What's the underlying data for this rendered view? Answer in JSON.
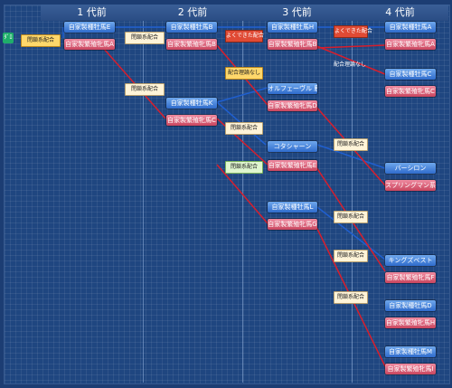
{
  "headers": [
    "1 代前",
    "2 代前",
    "3 代前",
    "4 代前"
  ],
  "root_label": "ﾀﾞﾛ",
  "gen1": {
    "tag": "閉鎖系配合",
    "sire": "自家製種牡馬E",
    "dam": "自家製繁殖牝馬A"
  },
  "gen2": {
    "tag_top": "閉鎖系配合",
    "tag_mid": "閉鎖系配合",
    "sire_a": "自家製種牡馬B",
    "dam_a": "自家製繁殖牝馬B",
    "sire_b": "自家製種牡馬K",
    "dam_b": "自家製繁殖牝馬C"
  },
  "gen3": {
    "tag_1": "よくできた配合",
    "tag_2": "配合理論なし",
    "tag_3": "閉鎖系配合",
    "tag_4": "閉鎖系配合",
    "sire_1": "自家製種牡馬H",
    "dam_1": "自家製繁殖牝馬B",
    "sire_2": "オルフェーヴル 鹿毛",
    "dam_2": "自家製繁殖牝馬D",
    "sire_3": "コタシャーン",
    "dam_3": "自家製繁殖牝馬E",
    "sire_4": "自家製種牡馬L",
    "dam_4": "自家製繁殖牝馬G",
    "tag_r1": "よくできた配合",
    "tag_r2": "配合理論なし",
    "tag_r3": "閉鎖系配合",
    "tag_r4": "閉鎖系配合",
    "tag_r5": "閉鎖系配合",
    "tag_r6": "閉鎖系配合"
  },
  "gen4": {
    "s1": "自家製種牡馬A",
    "d1": "自家製繁殖牝馬A",
    "s2": "自家製種牡馬C",
    "d2": "自家製繁殖牝馬C",
    "s3": "バーシロン",
    "d3": "スプリングマン系",
    "s4": "キングズベスト",
    "d4": "自家製繁殖牝馬F",
    "s5": "自家製種牡馬D",
    "d5": "自家製繁殖牝馬H",
    "s6": "自家製種牡馬M",
    "d6": "自家製繁殖牝馬I"
  },
  "colors": {
    "sire_line": "#1f5fd0",
    "dam_line": "#d81e2c",
    "background": "#1f4680"
  }
}
